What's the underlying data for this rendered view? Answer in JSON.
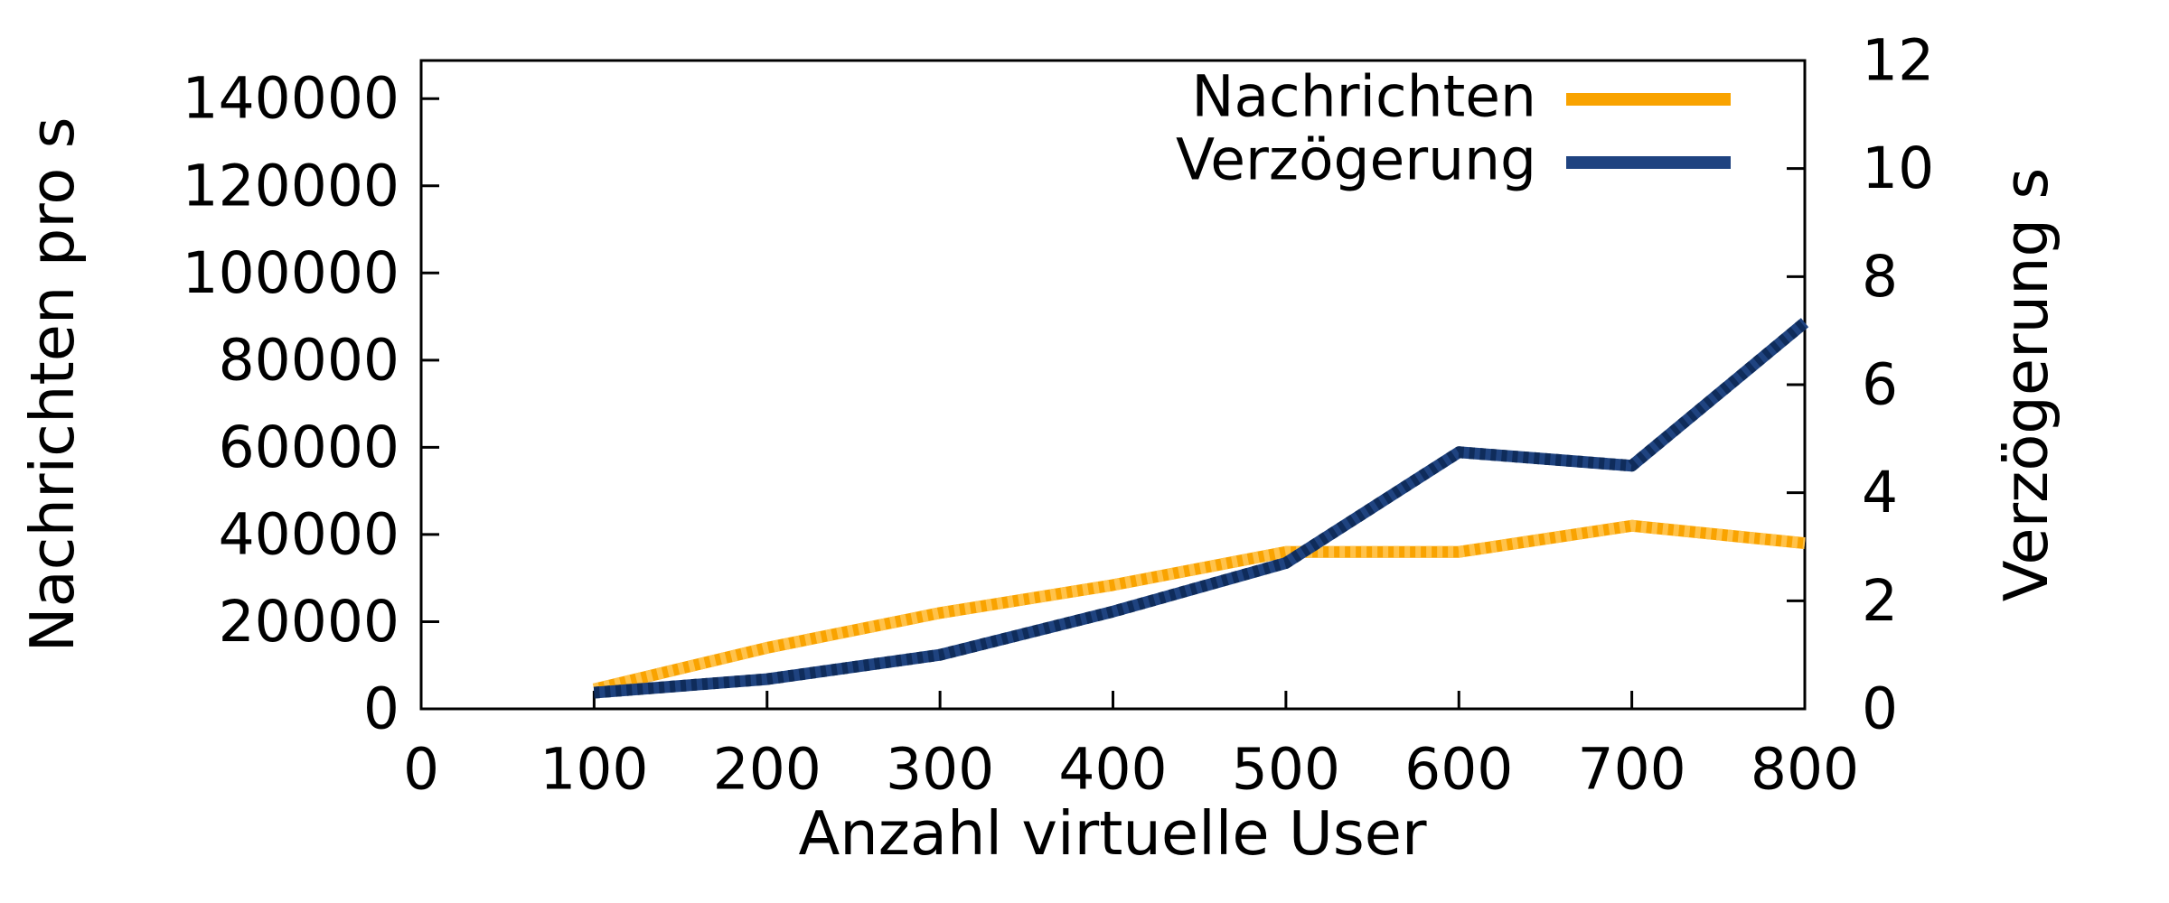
{
  "chart_data": {
    "type": "line",
    "title": "",
    "xlabel": "Anzahl virtuelle User",
    "x": [
      100,
      200,
      300,
      400,
      500,
      600,
      700,
      800
    ],
    "xlim": [
      0,
      800
    ],
    "x_tick_labels": [
      "0",
      "100",
      "200",
      "300",
      "400",
      "500",
      "600",
      "700",
      "800"
    ],
    "left_axis": {
      "label": "Nachrichten pro s",
      "lim": [
        0,
        148750
      ],
      "tick_labels": [
        "0",
        "20000",
        "40000",
        "60000",
        "80000",
        "100000",
        "120000",
        "140000"
      ]
    },
    "right_axis": {
      "label": "Verzögerung s",
      "lim": [
        0,
        12
      ],
      "tick_labels": [
        "0",
        "2",
        "4",
        "6",
        "8",
        "10",
        "12"
      ]
    },
    "series": [
      {
        "name": "Nachrichten",
        "axis": "left",
        "color": "#F9A300",
        "dash_color": "#FFC24A",
        "values": [
          4500,
          14000,
          22000,
          28400,
          36000,
          36000,
          42000,
          38000
        ]
      },
      {
        "name": "Verzögerung",
        "axis": "right",
        "color": "#1F4380",
        "dash_color": "#0F2C5B",
        "values": [
          0.3,
          0.55,
          1.0,
          1.8,
          2.7,
          4.75,
          4.5,
          7.15
        ]
      }
    ],
    "legend": {
      "position": "top-right"
    },
    "grid": false,
    "background": "#FFFFFF",
    "text_color": "#000000",
    "frame_color": "#000000"
  }
}
